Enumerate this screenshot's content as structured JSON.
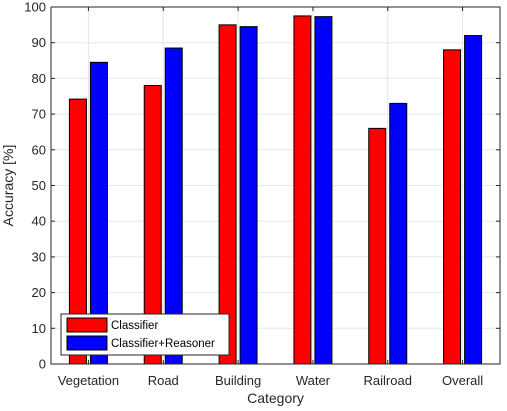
{
  "chart_data": {
    "type": "bar",
    "xlabel": "Category",
    "ylabel": "Accuracy [%]",
    "ylim": [
      0,
      100
    ],
    "yticks": [
      0,
      10,
      20,
      30,
      40,
      50,
      60,
      70,
      80,
      90,
      100
    ],
    "grid": true,
    "legend_position": "bottom-left",
    "categories": [
      "Vegetation",
      "Road",
      "Building",
      "Water",
      "Railroad",
      "Overall"
    ],
    "series": [
      {
        "name": "Classifier",
        "color": "#ff0000",
        "values": [
          74.2,
          78,
          95,
          97.5,
          66,
          88
        ]
      },
      {
        "name": "Classifier+Reasoner",
        "color": "#0000ff",
        "values": [
          84.5,
          88.5,
          94.5,
          97.3,
          73,
          92
        ]
      }
    ]
  }
}
